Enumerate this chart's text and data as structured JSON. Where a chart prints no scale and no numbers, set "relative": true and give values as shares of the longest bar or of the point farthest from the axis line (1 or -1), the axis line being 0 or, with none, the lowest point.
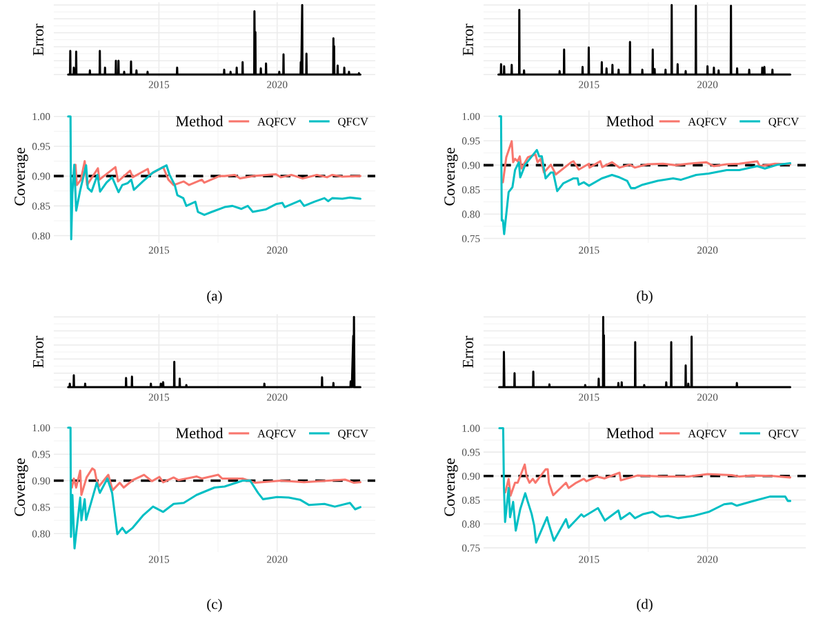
{
  "chart_data": [
    {
      "type": "line",
      "ylabel": "Error",
      "relative": true,
      "grid": true,
      "xlim": [
        2010.55,
        2024.15
      ],
      "xticks": [
        2015,
        2020
      ],
      "series": [
        {
          "color": "#000000",
          "x": [
            2011.16,
            2011.24,
            2011.25,
            2011.26,
            2011.39,
            2011.4,
            2011.41,
            2011.49,
            2011.5,
            2011.51,
            2012.07,
            2012.08,
            2012.09,
            2012.49,
            2012.5,
            2012.51,
            2012.71,
            2012.72,
            2012.73,
            2013.17,
            2013.18,
            2013.19,
            2013.28,
            2013.29,
            2013.3,
            2013.52,
            2013.53,
            2013.54,
            2013.81,
            2013.82,
            2013.83,
            2014.04,
            2014.05,
            2014.06,
            2014.51,
            2014.52,
            2014.53,
            2015.76,
            2015.77,
            2015.78,
            2017.75,
            2017.76,
            2017.77,
            2018.02,
            2018.03,
            2018.04,
            2018.28,
            2018.29,
            2018.3,
            2018.53,
            2018.54,
            2018.55,
            2019.03,
            2019.04,
            2019.06,
            2019.08,
            2019.09,
            2019.3,
            2019.31,
            2019.32,
            2019.52,
            2019.53,
            2019.54,
            2020.08,
            2020.09,
            2020.1,
            2020.26,
            2020.27,
            2020.28,
            2020.99,
            2021.0,
            2021.02,
            2021.06,
            2021.07,
            2021.23,
            2021.24,
            2021.25,
            2022.37,
            2022.38,
            2022.395,
            2022.41,
            2022.42,
            2022.55,
            2022.56,
            2022.57,
            2022.83,
            2022.84,
            2022.85,
            2023.03,
            2023.04,
            2023.05,
            2023.45,
            2023.46,
            2023.47,
            2023.52
          ],
          "values": [
            0,
            0,
            0.34,
            0,
            0,
            0.1,
            0,
            0,
            0.33,
            0,
            0,
            0.06,
            0,
            0,
            0.34,
            0,
            0,
            0.1,
            0,
            0,
            0.2,
            0,
            0,
            0.2,
            0,
            0,
            0.04,
            0,
            0,
            0.19,
            0,
            0,
            0.06,
            0,
            0,
            0.04,
            0,
            0,
            0.1,
            0,
            0,
            0.07,
            0,
            0,
            0.04,
            0,
            0,
            0.1,
            0,
            0,
            0.18,
            0,
            0,
            0.91,
            0,
            0.61,
            0,
            0,
            0.09,
            0,
            0,
            0.16,
            0,
            0,
            0.04,
            0,
            0,
            0.29,
            0,
            0,
            0.18,
            0,
            1.0,
            0,
            0,
            0.3,
            0,
            0,
            0.52,
            0,
            0.41,
            0,
            0,
            0.13,
            0,
            0,
            0.1,
            0,
            0,
            0.04,
            0,
            0,
            0.02,
            0,
            0
          ]
        }
      ]
    },
    {
      "type": "line",
      "xlabel": null,
      "ylabel": "Coverage",
      "grid": true,
      "legend": "top right",
      "legend_title": "Method",
      "xlim": [
        2010.55,
        2024.15
      ],
      "xticks": [
        2015,
        2020
      ],
      "ylim": [
        0.788,
        1.01
      ],
      "yticks": [
        {
          "value": 0.8,
          "label": "0.80"
        },
        {
          "value": 0.85,
          "label": "0.85"
        },
        {
          "value": 0.9,
          "label": "0.90"
        },
        {
          "value": 0.95,
          "label": "0.95"
        },
        {
          "value": 1.0,
          "label": "1.00"
        }
      ],
      "ref_lines": [
        {
          "axis": "y",
          "value": 0.9,
          "color": "#000000",
          "line_style": "dashed"
        }
      ],
      "annotations": [
        "(a)"
      ],
      "series": [
        {
          "name": "AQFCV",
          "color": "#f8766d",
          "x": [
            2011.4,
            2011.47,
            2011.53,
            2011.7,
            2011.86,
            2011.96,
            2012.42,
            2012.48,
            2013.16,
            2013.27,
            2013.78,
            2013.89,
            2014.53,
            2014.59,
            2015.18,
            2015.4,
            2015.62,
            2016.05,
            2016.27,
            2016.81,
            2016.92,
            2017.56,
            2017.78,
            2018.21,
            2018.43,
            2018.97,
            2019.95,
            2020.16,
            2020.6,
            2021.08,
            2021.68,
            2022.11,
            2022.33,
            2022.76,
            2023.52
          ],
          "values": [
            0.902,
            0.919,
            0.885,
            0.894,
            0.925,
            0.885,
            0.913,
            0.894,
            0.915,
            0.891,
            0.909,
            0.898,
            0.912,
            0.902,
            0.915,
            0.894,
            0.885,
            0.891,
            0.885,
            0.894,
            0.889,
            0.9,
            0.9,
            0.902,
            0.896,
            0.9,
            0.903,
            0.898,
            0.902,
            0.896,
            0.902,
            0.898,
            0.902,
            0.899,
            0.9
          ]
        },
        {
          "name": "QFCV",
          "color": "#00bfc4",
          "x": [
            2011.16,
            2011.26,
            2011.29,
            2011.34,
            2011.42,
            2011.5,
            2011.67,
            2011.92,
            2011.99,
            2012.15,
            2012.4,
            2012.51,
            2012.78,
            2013.02,
            2013.29,
            2013.45,
            2013.67,
            2013.83,
            2013.94,
            2014.32,
            2014.75,
            2015.32,
            2015.45,
            2015.67,
            2015.78,
            2016.03,
            2016.16,
            2016.54,
            2016.65,
            2016.92,
            2017.24,
            2017.78,
            2018.11,
            2018.49,
            2018.76,
            2018.97,
            2019.51,
            2019.95,
            2020.22,
            2020.32,
            2020.97,
            2021.14,
            2021.57,
            2022.0,
            2022.16,
            2022.33,
            2022.76,
            2023.08,
            2023.52
          ],
          "values": [
            1.0,
            1.0,
            0.794,
            0.872,
            0.919,
            0.842,
            0.876,
            0.918,
            0.88,
            0.874,
            0.902,
            0.874,
            0.889,
            0.898,
            0.873,
            0.885,
            0.888,
            0.894,
            0.877,
            0.891,
            0.906,
            0.918,
            0.902,
            0.885,
            0.868,
            0.863,
            0.85,
            0.857,
            0.84,
            0.835,
            0.84,
            0.848,
            0.85,
            0.845,
            0.85,
            0.84,
            0.844,
            0.853,
            0.855,
            0.848,
            0.859,
            0.85,
            0.857,
            0.863,
            0.858,
            0.863,
            0.862,
            0.864,
            0.862
          ]
        }
      ]
    },
    {
      "type": "line",
      "ylabel": "Error",
      "relative": true,
      "grid": true,
      "xlim": [
        2010.55,
        2024.15
      ],
      "xticks": [
        2015,
        2020
      ],
      "series": [
        {
          "color": "#000000",
          "x": [
            2011.18,
            2011.28,
            2011.29,
            2011.3,
            2011.41,
            2011.42,
            2011.43,
            2011.73,
            2011.74,
            2011.75,
            2012.05,
            2012.06,
            2012.07,
            2012.25,
            2012.26,
            2012.27,
            2013.75,
            2013.76,
            2013.77,
            2013.94,
            2013.95,
            2013.96,
            2014.72,
            2014.73,
            2014.74,
            2014.98,
            2014.99,
            2015.0,
            2015.53,
            2015.54,
            2015.55,
            2015.73,
            2015.74,
            2015.75,
            2015.98,
            2015.99,
            2016.0,
            2016.24,
            2016.25,
            2016.26,
            2016.72,
            2016.73,
            2016.74,
            2017.24,
            2017.25,
            2017.26,
            2017.68,
            2017.69,
            2017.7,
            2017.76,
            2017.77,
            2017.78,
            2018.22,
            2018.23,
            2018.24,
            2018.48,
            2018.49,
            2018.5,
            2018.73,
            2018.74,
            2018.75,
            2019.07,
            2019.08,
            2019.09,
            2019.5,
            2019.51,
            2019.52,
            2019.99,
            2020.0,
            2020.01,
            2020.26,
            2020.27,
            2020.28,
            2020.46,
            2020.47,
            2020.48,
            2020.98,
            2020.99,
            2021.0,
            2021.24,
            2021.25,
            2021.26,
            2021.75,
            2021.76,
            2021.77,
            2022.3,
            2022.31,
            2022.35,
            2022.4,
            2022.41,
            2022.73,
            2022.74,
            2022.75,
            2023.49
          ],
          "values": [
            0,
            0,
            0.15,
            0,
            0,
            0.12,
            0,
            0,
            0.14,
            0,
            0,
            0.93,
            0,
            0,
            0.06,
            0,
            0,
            0.05,
            0,
            0,
            0.36,
            0,
            0,
            0.11,
            0,
            0,
            0.39,
            0,
            0,
            0.18,
            0,
            0,
            0.09,
            0,
            0,
            0.14,
            0,
            0,
            0.07,
            0,
            0,
            0.47,
            0,
            0,
            0.07,
            0,
            0,
            0.36,
            0,
            0,
            0.08,
            0,
            0,
            0.07,
            0,
            0,
            1.0,
            0,
            0,
            0.15,
            0,
            0,
            0.05,
            0,
            0,
            0.99,
            0,
            0,
            0.12,
            0,
            0,
            0.1,
            0,
            0,
            0.06,
            0,
            0,
            0.99,
            0,
            0,
            0.09,
            0,
            0,
            0.07,
            0,
            0,
            0.1,
            0,
            0.11,
            0,
            0,
            0.07,
            0,
            0
          ]
        }
      ]
    },
    {
      "type": "line",
      "ylabel": "Coverage",
      "grid": true,
      "legend": "top right",
      "legend_title": "Method",
      "xlim": [
        2010.55,
        2024.15
      ],
      "xticks": [
        2015,
        2020
      ],
      "ylim": [
        0.741,
        1.012
      ],
      "yticks": [
        {
          "value": 0.75,
          "label": "0.75"
        },
        {
          "value": 0.8,
          "label": "0.80"
        },
        {
          "value": 0.85,
          "label": "0.85"
        },
        {
          "value": 0.9,
          "label": "0.90"
        },
        {
          "value": 0.95,
          "label": "0.95"
        },
        {
          "value": 1.0,
          "label": "1.00"
        }
      ],
      "ref_lines": [
        {
          "axis": "y",
          "value": 0.9,
          "color": "#000000",
          "line_style": "dashed"
        }
      ],
      "annotations": [
        "(b)"
      ],
      "series": [
        {
          "name": "AQFCV",
          "color": "#f8766d",
          "x": [
            2011.37,
            2011.51,
            2011.74,
            2011.8,
            2011.88,
            2011.99,
            2012.08,
            2012.15,
            2012.42,
            2012.74,
            2012.83,
            2012.96,
            2013.1,
            2013.39,
            2013.6,
            2014.25,
            2014.35,
            2014.57,
            2015.0,
            2015.02,
            2015.48,
            2015.56,
            2015.97,
            2016.29,
            2016.72,
            2016.94,
            2017.47,
            2018.12,
            2018.66,
            2019.19,
            2019.95,
            2020.27,
            2020.81,
            2021.34,
            2022.1,
            2022.2,
            2022.85,
            2023.49
          ],
          "values": [
            0.865,
            0.916,
            0.949,
            0.906,
            0.913,
            0.908,
            0.918,
            0.893,
            0.916,
            0.922,
            0.906,
            0.913,
            0.885,
            0.901,
            0.881,
            0.906,
            0.908,
            0.891,
            0.903,
            0.895,
            0.908,
            0.896,
            0.906,
            0.895,
            0.901,
            0.895,
            0.902,
            0.903,
            0.9,
            0.903,
            0.906,
            0.898,
            0.902,
            0.903,
            0.908,
            0.898,
            0.903,
            0.902
          ]
        },
        {
          "name": "QFCV",
          "color": "#00bfc4",
          "x": [
            2011.22,
            2011.29,
            2011.32,
            2011.37,
            2011.42,
            2011.61,
            2011.77,
            2011.88,
            2012.04,
            2012.1,
            2012.31,
            2012.8,
            2012.9,
            2013.01,
            2013.17,
            2013.39,
            2013.49,
            2013.66,
            2013.92,
            2014.35,
            2014.52,
            2014.57,
            2014.78,
            2015.0,
            2015.54,
            2015.97,
            2016.29,
            2016.61,
            2016.77,
            2016.94,
            2017.26,
            2017.9,
            2018.55,
            2018.87,
            2019.52,
            2020.05,
            2020.81,
            2021.34,
            2022.1,
            2022.42,
            2022.96,
            2023.49
          ],
          "values": [
            1.0,
            1.0,
            0.787,
            0.787,
            0.759,
            0.845,
            0.855,
            0.89,
            0.906,
            0.875,
            0.901,
            0.931,
            0.918,
            0.918,
            0.873,
            0.885,
            0.885,
            0.847,
            0.863,
            0.873,
            0.873,
            0.86,
            0.865,
            0.858,
            0.873,
            0.88,
            0.875,
            0.868,
            0.853,
            0.853,
            0.86,
            0.868,
            0.873,
            0.87,
            0.88,
            0.883,
            0.89,
            0.89,
            0.898,
            0.893,
            0.901,
            0.904
          ]
        }
      ]
    },
    {
      "type": "line",
      "ylabel": "Error",
      "relative": true,
      "grid": true,
      "xlim": [
        2010.55,
        2024.15
      ],
      "xticks": [
        2015,
        2020
      ],
      "series": [
        {
          "color": "#000000",
          "x": [
            2011.16,
            2011.22,
            2011.23,
            2011.24,
            2011.39,
            2011.4,
            2011.41,
            2011.87,
            2011.88,
            2011.89,
            2013.6,
            2013.61,
            2013.62,
            2013.85,
            2013.86,
            2013.87,
            2014.65,
            2014.66,
            2014.67,
            2015.07,
            2015.08,
            2015.13,
            2015.18,
            2015.19,
            2015.64,
            2015.65,
            2015.66,
            2015.87,
            2015.88,
            2015.89,
            2016.15,
            2016.16,
            2016.17,
            2019.45,
            2019.46,
            2019.47,
            2021.89,
            2021.9,
            2021.91,
            2022.37,
            2022.38,
            2022.39,
            2023.1,
            2023.11,
            2023.16,
            2023.22,
            2023.235,
            2023.25,
            2023.27,
            2023.52
          ],
          "values": [
            0,
            0,
            0.05,
            0,
            0,
            0.17,
            0,
            0,
            0.05,
            0,
            0,
            0.13,
            0,
            0,
            0.15,
            0,
            0,
            0.05,
            0,
            0,
            0.05,
            0,
            0.07,
            0,
            0,
            0.36,
            0,
            0,
            0.12,
            0,
            0,
            0.03,
            0,
            0,
            0.05,
            0,
            0,
            0.14,
            0,
            0,
            0.06,
            0,
            0,
            0.08,
            0,
            0.73,
            0,
            1.0,
            0,
            0
          ]
        }
      ]
    },
    {
      "type": "line",
      "ylabel": "Coverage",
      "grid": true,
      "legend": "top right",
      "legend_title": "Method",
      "xlim": [
        2010.55,
        2024.15
      ],
      "xticks": [
        2015,
        2020
      ],
      "ylim": [
        0.765,
        1.01
      ],
      "yticks": [
        {
          "value": 0.8,
          "label": "0.80"
        },
        {
          "value": 0.85,
          "label": "0.85"
        },
        {
          "value": 0.9,
          "label": "0.90"
        },
        {
          "value": 0.95,
          "label": "0.95"
        },
        {
          "value": 1.0,
          "label": "1.00"
        }
      ],
      "ref_lines": [
        {
          "axis": "y",
          "value": 0.9,
          "color": "#000000",
          "line_style": "dashed"
        }
      ],
      "annotations": [
        "(c)"
      ],
      "series": [
        {
          "name": "AQFCV",
          "color": "#f8766d",
          "x": [
            2011.32,
            2011.4,
            2011.5,
            2011.67,
            2011.72,
            2011.94,
            2012.18,
            2012.28,
            2012.35,
            2012.46,
            2012.86,
            2013.04,
            2013.34,
            2013.51,
            2013.89,
            2014.37,
            2014.7,
            2015.02,
            2015.18,
            2015.62,
            2015.83,
            2016.59,
            2016.81,
            2017.51,
            2017.67,
            2018.54,
            2019.08,
            2020.16,
            2021.14,
            2022.87,
            2023.25,
            2023.52
          ],
          "values": [
            0.887,
            0.904,
            0.887,
            0.919,
            0.873,
            0.906,
            0.923,
            0.92,
            0.904,
            0.889,
            0.911,
            0.882,
            0.896,
            0.887,
            0.901,
            0.911,
            0.899,
            0.907,
            0.897,
            0.906,
            0.901,
            0.908,
            0.904,
            0.911,
            0.904,
            0.904,
            0.896,
            0.9,
            0.897,
            0.902,
            0.896,
            0.897
          ]
        },
        {
          "name": "QFCV",
          "color": "#00bfc4",
          "x": [
            2011.16,
            2011.26,
            2011.28,
            2011.34,
            2011.43,
            2011.67,
            2011.72,
            2011.86,
            2011.92,
            2012.37,
            2012.5,
            2012.82,
            2013.02,
            2013.24,
            2013.45,
            2013.61,
            2013.89,
            2014.32,
            2014.75,
            2015.18,
            2015.62,
            2016.05,
            2016.59,
            2017.35,
            2017.78,
            2018.54,
            2018.86,
            2019.19,
            2019.4,
            2020.0,
            2020.49,
            2020.97,
            2021.35,
            2022.0,
            2022.44,
            2023.08,
            2023.3,
            2023.52
          ],
          "values": [
            1.0,
            1.0,
            0.794,
            0.873,
            0.772,
            0.868,
            0.825,
            0.865,
            0.826,
            0.896,
            0.877,
            0.904,
            0.877,
            0.799,
            0.811,
            0.801,
            0.811,
            0.834,
            0.851,
            0.841,
            0.856,
            0.858,
            0.873,
            0.887,
            0.889,
            0.9,
            0.9,
            0.877,
            0.865,
            0.869,
            0.868,
            0.864,
            0.854,
            0.856,
            0.851,
            0.858,
            0.846,
            0.85
          ]
        }
      ]
    },
    {
      "type": "line",
      "ylabel": "Error",
      "relative": true,
      "grid": true,
      "xlim": [
        2010.55,
        2024.15
      ],
      "xticks": [
        2015,
        2020
      ],
      "series": [
        {
          "color": "#000000",
          "x": [
            2011.21,
            2011.4,
            2011.41,
            2011.43,
            2011.85,
            2011.86,
            2011.87,
            2012.64,
            2012.65,
            2012.66,
            2013.32,
            2013.33,
            2013.34,
            2014.83,
            2014.84,
            2014.85,
            2015.4,
            2015.41,
            2015.42,
            2015.59,
            2015.6,
            2015.615,
            2015.63,
            2015.64,
            2016.23,
            2016.24,
            2016.25,
            2016.37,
            2016.38,
            2016.39,
            2016.94,
            2016.95,
            2016.96,
            2017.32,
            2017.33,
            2017.34,
            2018.25,
            2018.26,
            2018.27,
            2018.46,
            2018.47,
            2018.48,
            2019.07,
            2019.08,
            2019.09,
            2019.18,
            2019.19,
            2019.2,
            2019.32,
            2019.33,
            2019.34,
            2021.23,
            2021.24,
            2021.25,
            2023.49
          ],
          "values": [
            0,
            0,
            0.5,
            0,
            0,
            0.2,
            0,
            0,
            0.22,
            0,
            0,
            0.04,
            0,
            0,
            0.03,
            0,
            0,
            0.12,
            0,
            0,
            1.0,
            0,
            0.74,
            0,
            0,
            0.06,
            0,
            0,
            0.07,
            0,
            0,
            0.64,
            0,
            0,
            0.03,
            0,
            0,
            0.07,
            0,
            0,
            0.64,
            0,
            0,
            0.31,
            0,
            0,
            0.05,
            0,
            0,
            0.72,
            0,
            0,
            0.06,
            0,
            0
          ]
        }
      ]
    },
    {
      "type": "line",
      "ylabel": "Coverage",
      "grid": true,
      "legend": "top right",
      "legend_title": "Method",
      "xlim": [
        2010.55,
        2024.15
      ],
      "xticks": [
        2015,
        2020
      ],
      "ylim": [
        0.741,
        1.012
      ],
      "yticks": [
        {
          "value": 0.75,
          "label": "0.75"
        },
        {
          "value": 0.8,
          "label": "0.80"
        },
        {
          "value": 0.85,
          "label": "0.85"
        },
        {
          "value": 0.9,
          "label": "0.90"
        },
        {
          "value": 0.95,
          "label": "0.95"
        },
        {
          "value": 1.0,
          "label": "1.00"
        }
      ],
      "ref_lines": [
        {
          "axis": "y",
          "value": 0.9,
          "color": "#000000",
          "line_style": "dashed"
        }
      ],
      "annotations": [
        "(d)"
      ],
      "series": [
        {
          "name": "AQFCV",
          "color": "#f8766d",
          "x": [
            2011.47,
            2011.61,
            2011.69,
            2011.88,
            2011.99,
            2012.29,
            2012.37,
            2012.49,
            2012.63,
            2012.74,
            2013.17,
            2013.26,
            2013.31,
            2013.49,
            2014.03,
            2014.14,
            2014.46,
            2014.78,
            2014.89,
            2015.32,
            2015.65,
            2016.29,
            2016.34,
            2017.04,
            2018.12,
            2019.19,
            2020.0,
            2021.02,
            2021.34,
            2021.88,
            2022.74,
            2023.49
          ],
          "values": [
            0.866,
            0.894,
            0.859,
            0.886,
            0.886,
            0.924,
            0.899,
            0.886,
            0.894,
            0.886,
            0.914,
            0.914,
            0.886,
            0.86,
            0.886,
            0.875,
            0.886,
            0.894,
            0.889,
            0.899,
            0.895,
            0.907,
            0.891,
            0.901,
            0.899,
            0.899,
            0.904,
            0.902,
            0.899,
            0.901,
            0.9,
            0.897
          ]
        },
        {
          "name": "QFCV",
          "color": "#00bfc4",
          "x": [
            2011.22,
            2011.38,
            2011.41,
            2011.46,
            2011.61,
            2011.67,
            2011.8,
            2011.91,
            2012.1,
            2012.31,
            2012.42,
            2012.58,
            2012.69,
            2012.77,
            2013.23,
            2013.28,
            2013.52,
            2014.03,
            2014.14,
            2014.68,
            2014.78,
            2015.38,
            2015.67,
            2016.24,
            2016.34,
            2016.72,
            2016.94,
            2017.26,
            2017.69,
            2018.01,
            2018.33,
            2018.76,
            2019.41,
            2020.05,
            2020.7,
            2021.02,
            2021.24,
            2021.88,
            2022.63,
            2023.28,
            2023.39,
            2023.49
          ],
          "values": [
            1.0,
            1.0,
            0.881,
            0.804,
            0.875,
            0.814,
            0.846,
            0.786,
            0.831,
            0.864,
            0.846,
            0.821,
            0.796,
            0.761,
            0.814,
            0.804,
            0.765,
            0.81,
            0.792,
            0.82,
            0.815,
            0.833,
            0.807,
            0.828,
            0.81,
            0.823,
            0.812,
            0.82,
            0.825,
            0.815,
            0.817,
            0.812,
            0.817,
            0.825,
            0.841,
            0.843,
            0.838,
            0.847,
            0.857,
            0.857,
            0.848,
            0.848
          ]
        }
      ]
    }
  ]
}
